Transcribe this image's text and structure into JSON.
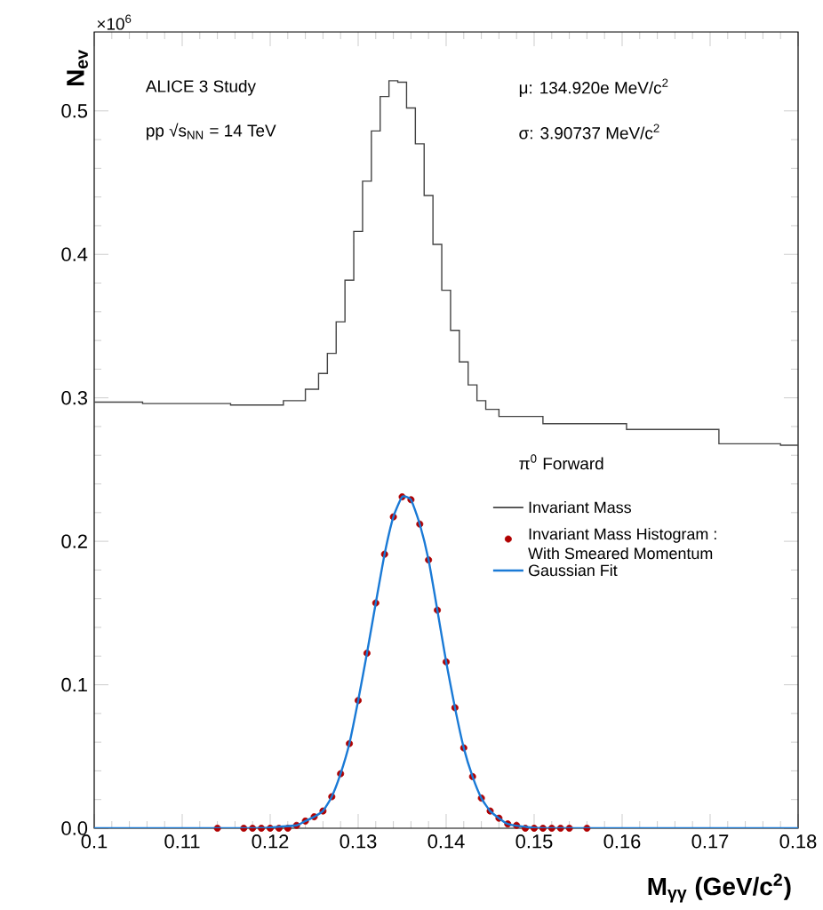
{
  "chart_data": {
    "type": "step",
    "xlabel": "**M$_{γγ}$ (GeV/c$^{2}$)**",
    "ylabel": "**N$_{ev}$**",
    "annotations": [
      "ALICE 3 Study",
      "pp √s$_{NN}$ = 14 TeV",
      "μ: 134.920e MeV/c$^{2}$",
      "σ: 3.90737 MeV/c$^{2}$",
      "π$^{0}$ Forward",
      "×10$^{6}$"
    ],
    "xlim": [
      0.1,
      0.18
    ],
    "ylim": [
      0,
      0.555
    ],
    "xticks": [
      0.1,
      0.11,
      0.12,
      0.13,
      0.14,
      0.15,
      0.16,
      0.17,
      0.18
    ],
    "yticks": [
      {
        "value": 0,
        "label": "0.0"
      },
      0.1,
      0.2,
      0.3,
      0.4,
      0.5
    ],
    "grid": false,
    "legend": "right",
    "series": [
      {
        "name": "Invariant Mass",
        "marker": "none",
        "color": "#444444",
        "x": [
          0.1,
          0.111,
          0.12,
          0.123,
          0.125,
          0.126,
          0.127,
          0.128,
          0.129,
          0.13,
          0.131,
          0.132,
          0.133,
          0.134,
          0.135,
          0.136,
          0.137,
          0.138,
          0.139,
          0.14,
          0.141,
          0.142,
          0.143,
          0.144,
          0.145,
          0.147,
          0.155,
          0.166,
          0.176,
          0.18
        ],
        "values": [
          0.297,
          0.296,
          0.295,
          0.298,
          0.306,
          0.317,
          0.331,
          0.353,
          0.382,
          0.416,
          0.451,
          0.486,
          0.51,
          0.521,
          0.52,
          0.502,
          0.477,
          0.441,
          0.407,
          0.375,
          0.347,
          0.325,
          0.309,
          0.298,
          0.292,
          0.287,
          0.282,
          0.278,
          0.268,
          0.267
        ]
      },
      {
        "name": "Invariant Mass Histogram : With Smeared Momentum",
        "type": "scatter",
        "marker": "circle",
        "color": "#b00000",
        "x": [
          0.114,
          0.117,
          0.118,
          0.119,
          0.12,
          0.121,
          0.122,
          0.123,
          0.124,
          0.125,
          0.126,
          0.127,
          0.128,
          0.129,
          0.13,
          0.131,
          0.132,
          0.133,
          0.134,
          0.135,
          0.136,
          0.137,
          0.138,
          0.139,
          0.14,
          0.141,
          0.142,
          0.143,
          0.144,
          0.145,
          0.146,
          0.147,
          0.148,
          0.149,
          0.15,
          0.151,
          0.152,
          0.153,
          0.154,
          0.156
        ],
        "values": [
          0,
          0,
          0,
          0,
          0,
          0,
          0,
          0.002,
          0.005,
          0.008,
          0.012,
          0.022,
          0.038,
          0.059,
          0.089,
          0.122,
          0.157,
          0.191,
          0.217,
          0.231,
          0.229,
          0.212,
          0.187,
          0.152,
          0.116,
          0.084,
          0.056,
          0.036,
          0.021,
          0.012,
          0.007,
          0.003,
          0.002,
          0,
          0,
          0,
          0,
          0,
          0,
          0
        ]
      },
      {
        "name": "Gaussian Fit",
        "type": "line",
        "marker": "none",
        "color": "#1a7ad6",
        "x": [
          0.1,
          0.118,
          0.121,
          0.123,
          0.124,
          0.125,
          0.126,
          0.127,
          0.128,
          0.129,
          0.13,
          0.131,
          0.132,
          0.133,
          0.134,
          0.135,
          0.136,
          0.137,
          0.138,
          0.139,
          0.14,
          0.141,
          0.142,
          0.143,
          0.144,
          0.145,
          0.146,
          0.147,
          0.149,
          0.152,
          0.18
        ],
        "values": [
          0,
          0,
          0.001,
          0.002,
          0.005,
          0.008,
          0.012,
          0.022,
          0.038,
          0.059,
          0.089,
          0.122,
          0.157,
          0.191,
          0.217,
          0.231,
          0.229,
          0.212,
          0.187,
          0.152,
          0.116,
          0.084,
          0.056,
          0.036,
          0.021,
          0.012,
          0.007,
          0.003,
          0.001,
          0,
          0
        ]
      }
    ]
  }
}
